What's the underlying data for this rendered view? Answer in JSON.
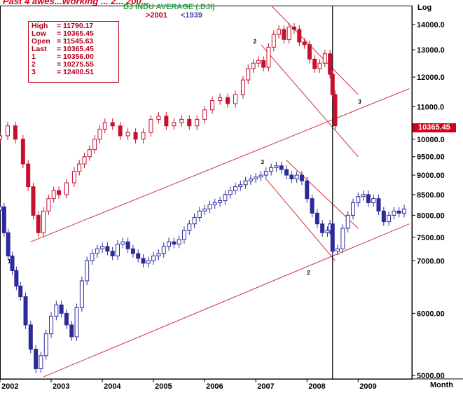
{
  "header": {
    "top_title": "Past 4 awes...Working ... 2... 200...",
    "dj_title": "DJ INDU AVERAGE (.DJI)",
    "series_2001": ">2001",
    "series_1939": "<1939"
  },
  "info_box": [
    {
      "key": "High",
      "value": "= 11790.17"
    },
    {
      "key": "Low",
      "value": "= 10365.45"
    },
    {
      "key": "Open",
      "value": "= 11545.63"
    },
    {
      "key": "Last",
      "value": "= 10365.45"
    },
    {
      "key": "1",
      "value": "= 10356.00"
    },
    {
      "key": "2",
      "value": "= 10275.55"
    },
    {
      "key": "3",
      "value": "= 12400.51"
    }
  ],
  "last_price_tag": "10365.45",
  "scale_label": "Log",
  "x_unit": "Month",
  "colors": {
    "up_red": "#c8102e",
    "up_blue": "#2a2a9a",
    "trend": "#d0303a",
    "accent_green": "#2aa84a"
  },
  "chart_data": {
    "type": "candlestick",
    "scale": "log",
    "ylim": [
      4950,
      14800
    ],
    "y_ticks": [
      "14000.0",
      "13000.0",
      "12000.0",
      "11000.0",
      "10000.0",
      "9500.00",
      "9000.00",
      "8500.00",
      "8000.00",
      "7500.00",
      "7000.00",
      "6000.00",
      "5000.00"
    ],
    "x_ticks": [
      "2002",
      "2003",
      "2004",
      "2005",
      "2006",
      "2007",
      "2008",
      "2009"
    ],
    "wave_labels": [
      {
        "text": "2",
        "series": ">2001",
        "x": "2006.95",
        "y": 13250
      },
      {
        "text": "3",
        "series": ">2001",
        "x": "2009.0",
        "y": 11100
      },
      {
        "text": "3",
        "series": "<1939",
        "x": "2007.1",
        "y": 9300
      },
      {
        "text": "1",
        "series": "<1939",
        "x": "2002.15",
        "y": 6950
      },
      {
        "text": "2",
        "series": "<1939",
        "x": "2008.0",
        "y": 6720
      }
    ],
    "series": [
      {
        "name": ">2001",
        "color": "#c8102e",
        "points": [
          [
            2002.0,
            10100
          ],
          [
            2002.15,
            10400
          ],
          [
            2002.3,
            10000
          ],
          [
            2002.45,
            9300
          ],
          [
            2002.55,
            8700
          ],
          [
            2002.65,
            8000
          ],
          [
            2002.75,
            7600
          ],
          [
            2002.85,
            8100
          ],
          [
            2002.95,
            8400
          ],
          [
            2003.05,
            8600
          ],
          [
            2003.15,
            8500
          ],
          [
            2003.3,
            8800
          ],
          [
            2003.45,
            9100
          ],
          [
            2003.55,
            9300
          ],
          [
            2003.65,
            9500
          ],
          [
            2003.75,
            9700
          ],
          [
            2003.85,
            10000
          ],
          [
            2003.95,
            10300
          ],
          [
            2004.05,
            10500
          ],
          [
            2004.2,
            10400
          ],
          [
            2004.35,
            10100
          ],
          [
            2004.5,
            10200
          ],
          [
            2004.65,
            10000
          ],
          [
            2004.8,
            10200
          ],
          [
            2004.95,
            10600
          ],
          [
            2005.1,
            10700
          ],
          [
            2005.25,
            10400
          ],
          [
            2005.4,
            10500
          ],
          [
            2005.55,
            10600
          ],
          [
            2005.7,
            10400
          ],
          [
            2005.85,
            10600
          ],
          [
            2006.0,
            10900
          ],
          [
            2006.15,
            11200
          ],
          [
            2006.3,
            11300
          ],
          [
            2006.45,
            11100
          ],
          [
            2006.6,
            11400
          ],
          [
            2006.75,
            11900
          ],
          [
            2006.85,
            12300
          ],
          [
            2006.95,
            12500
          ],
          [
            2007.05,
            12600
          ],
          [
            2007.15,
            12350
          ],
          [
            2007.25,
            13100
          ],
          [
            2007.35,
            13600
          ],
          [
            2007.45,
            13800
          ],
          [
            2007.55,
            13400
          ],
          [
            2007.65,
            13900
          ],
          [
            2007.75,
            13800
          ],
          [
            2007.85,
            13300
          ],
          [
            2007.95,
            13200
          ],
          [
            2008.05,
            12650
          ],
          [
            2008.15,
            12300
          ],
          [
            2008.25,
            12500
          ],
          [
            2008.35,
            12850
          ],
          [
            2008.45,
            12100
          ],
          [
            2008.5,
            11400
          ],
          [
            2008.55,
            10400
          ]
        ]
      },
      {
        "name": "<1939",
        "color": "#2a2a9a",
        "points": [
          [
            2002.0,
            8200
          ],
          [
            2002.08,
            7600
          ],
          [
            2002.16,
            7100
          ],
          [
            2002.24,
            6800
          ],
          [
            2002.32,
            6500
          ],
          [
            2002.4,
            6300
          ],
          [
            2002.5,
            5800
          ],
          [
            2002.6,
            5400
          ],
          [
            2002.7,
            5100
          ],
          [
            2002.8,
            5300
          ],
          [
            2002.9,
            5650
          ],
          [
            2003.0,
            5950
          ],
          [
            2003.1,
            6150
          ],
          [
            2003.2,
            6000
          ],
          [
            2003.3,
            5800
          ],
          [
            2003.4,
            5600
          ],
          [
            2003.5,
            6100
          ],
          [
            2003.6,
            6600
          ],
          [
            2003.7,
            7000
          ],
          [
            2003.8,
            7150
          ],
          [
            2003.9,
            7250
          ],
          [
            2004.0,
            7300
          ],
          [
            2004.1,
            7200
          ],
          [
            2004.2,
            7100
          ],
          [
            2004.3,
            7350
          ],
          [
            2004.4,
            7400
          ],
          [
            2004.5,
            7250
          ],
          [
            2004.6,
            7150
          ],
          [
            2004.7,
            7050
          ],
          [
            2004.8,
            6950
          ],
          [
            2004.9,
            7000
          ],
          [
            2005.0,
            7100
          ],
          [
            2005.1,
            7150
          ],
          [
            2005.2,
            7300
          ],
          [
            2005.3,
            7400
          ],
          [
            2005.4,
            7350
          ],
          [
            2005.5,
            7450
          ],
          [
            2005.6,
            7650
          ],
          [
            2005.7,
            7800
          ],
          [
            2005.8,
            7950
          ],
          [
            2005.9,
            8100
          ],
          [
            2006.0,
            8150
          ],
          [
            2006.1,
            8250
          ],
          [
            2006.2,
            8300
          ],
          [
            2006.3,
            8350
          ],
          [
            2006.4,
            8500
          ],
          [
            2006.5,
            8600
          ],
          [
            2006.6,
            8700
          ],
          [
            2006.7,
            8750
          ],
          [
            2006.8,
            8850
          ],
          [
            2006.9,
            8900
          ],
          [
            2007.0,
            8950
          ],
          [
            2007.1,
            9000
          ],
          [
            2007.2,
            9100
          ],
          [
            2007.3,
            9200
          ],
          [
            2007.4,
            9250
          ],
          [
            2007.5,
            9150
          ],
          [
            2007.6,
            9000
          ],
          [
            2007.7,
            8900
          ],
          [
            2007.8,
            9000
          ],
          [
            2007.9,
            8850
          ],
          [
            2008.0,
            8400
          ],
          [
            2008.1,
            8050
          ],
          [
            2008.2,
            7800
          ],
          [
            2008.3,
            7600
          ],
          [
            2008.4,
            7650
          ],
          [
            2008.45,
            7800
          ],
          [
            2008.5,
            7200
          ],
          [
            2008.6,
            7250
          ],
          [
            2008.7,
            7700
          ],
          [
            2008.8,
            8000
          ],
          [
            2008.9,
            8300
          ],
          [
            2009.0,
            8450
          ],
          [
            2009.1,
            8500
          ],
          [
            2009.2,
            8300
          ],
          [
            2009.3,
            8400
          ],
          [
            2009.4,
            8100
          ],
          [
            2009.5,
            7850
          ],
          [
            2009.6,
            8000
          ],
          [
            2009.7,
            8100
          ],
          [
            2009.8,
            8050
          ],
          [
            2009.9,
            8150
          ]
        ]
      }
    ],
    "trendlines": [
      {
        "name": "lower-channel-1939",
        "from": [
          "2002.85",
          4980
        ],
        "to": [
          "2010.0",
          7800
        ]
      },
      {
        "name": "upper-channel-support",
        "from": [
          "2002.6",
          7400
        ],
        "to": [
          "2010.0",
          11600
        ]
      },
      {
        "name": "falling-upper",
        "from": [
          "2007.3",
          14800
        ],
        "to": [
          "2009.0",
          11400
        ]
      },
      {
        "name": "falling-lower",
        "from": [
          "2007.1",
          13200
        ],
        "to": [
          "2009.0",
          9500
        ]
      },
      {
        "name": "falling-upper-1939",
        "from": [
          "2007.6",
          9400
        ],
        "to": [
          "2009.0",
          7700
        ]
      },
      {
        "name": "falling-lower-1939",
        "from": [
          "2007.2",
          8900
        ],
        "to": [
          "2008.55",
          7000
        ]
      }
    ],
    "vertical_marker": "2008.5"
  }
}
